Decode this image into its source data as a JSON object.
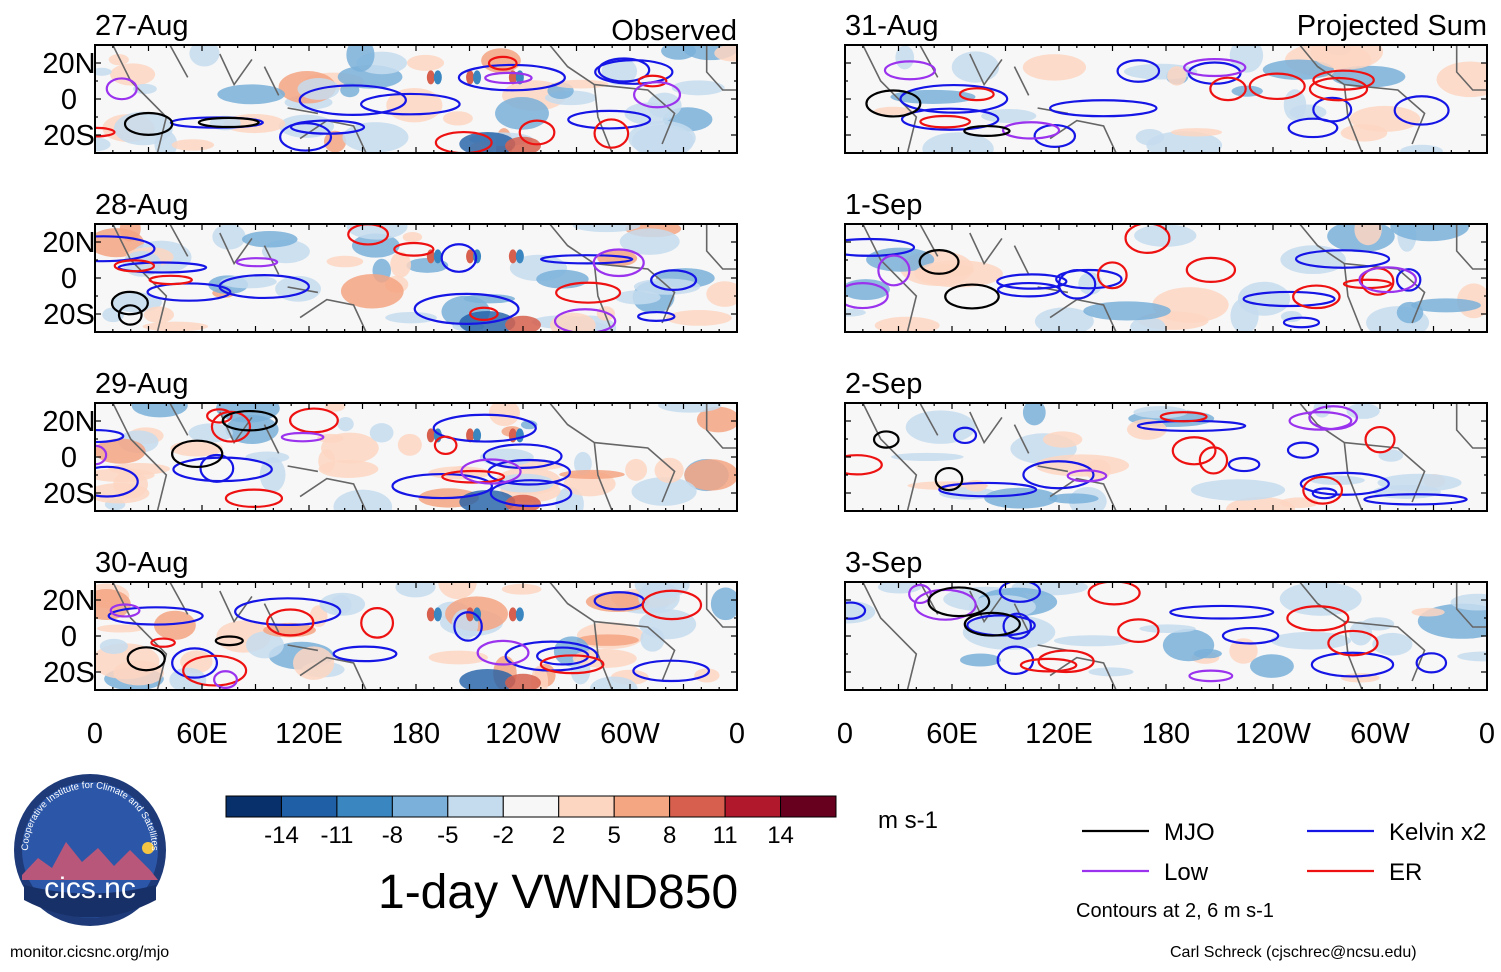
{
  "chart_data": {
    "type": "heatmap",
    "title": "1-day VWND850",
    "units": "m s-1",
    "columns": [
      {
        "id": "observed",
        "header": "Observed",
        "dates": [
          "27-Aug",
          "28-Aug",
          "29-Aug",
          "30-Aug"
        ]
      },
      {
        "id": "projected",
        "header": "Projected Sum",
        "dates": [
          "31-Aug",
          "1-Sep",
          "2-Sep",
          "3-Sep"
        ]
      }
    ],
    "y_ticks": [
      {
        "label": "20N",
        "lat": 20
      },
      {
        "label": "0",
        "lat": 0
      },
      {
        "label": "20S",
        "lat": -20
      }
    ],
    "ylim": [
      -30,
      30
    ],
    "x_ticks": [
      {
        "label": "0",
        "lon": 0
      },
      {
        "label": "60E",
        "lon": 60
      },
      {
        "label": "120E",
        "lon": 120
      },
      {
        "label": "180",
        "lon": 180
      },
      {
        "label": "120W",
        "lon": 240
      },
      {
        "label": "60W",
        "lon": 300
      },
      {
        "label": "0",
        "lon": 360
      }
    ],
    "xlim": [
      0,
      360
    ],
    "colorbar": {
      "levels": [
        "-14",
        "-11",
        "-8",
        "-5",
        "-2",
        "2",
        "5",
        "8",
        "11",
        "14"
      ],
      "colors": [
        "#08306b",
        "#1f5fa6",
        "#3a86c0",
        "#7ab0d9",
        "#c5dcef",
        "#f7f7f7",
        "#fdd6c2",
        "#f4a582",
        "#d6604d",
        "#b2182b",
        "#67001f"
      ]
    },
    "legend": [
      {
        "name": "MJO",
        "color": "#000000"
      },
      {
        "name": "Kelvin x2",
        "color": "#1515e6"
      },
      {
        "name": "Low",
        "color": "#9a32ee"
      },
      {
        "name": "ER",
        "color": "#ee1111"
      }
    ],
    "contours_note": "Contours at 2, 6 m s-1"
  },
  "footer": {
    "left": "monitor.cicsnc.org/mjo",
    "right": "Carl Schreck (cjschrec@ncsu.edu)"
  },
  "logo": {
    "name": "cics.nc",
    "ring_text": "Cooperative Institute for Climate and Satellites"
  }
}
